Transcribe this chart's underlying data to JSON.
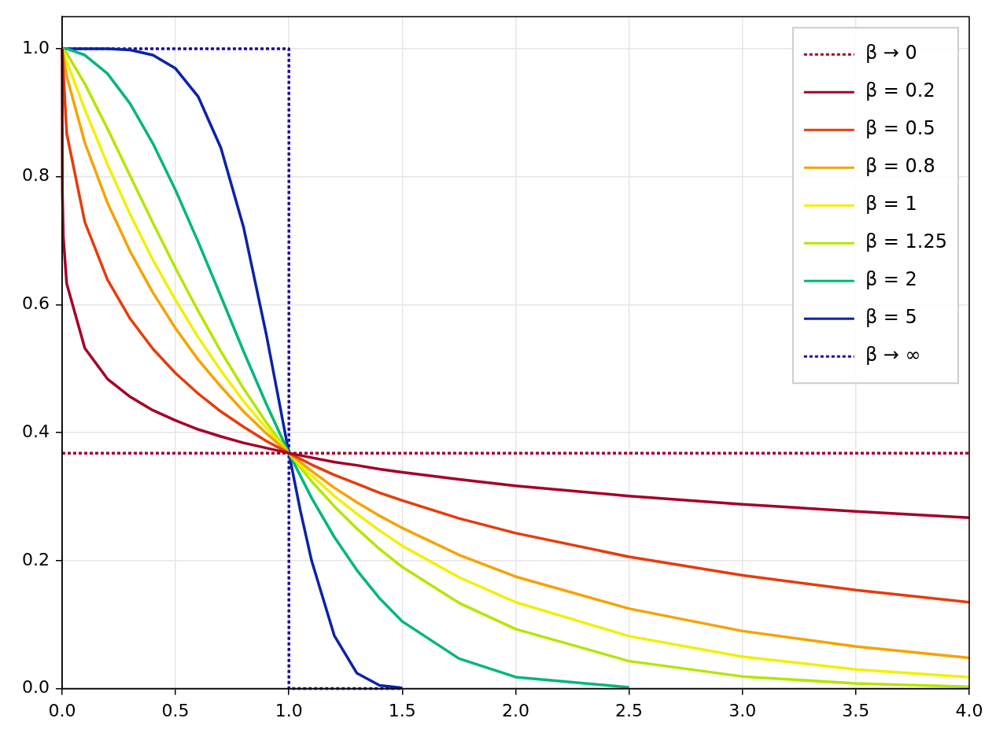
{
  "chart_data": {
    "type": "line",
    "x": [
      0,
      0.02,
      0.1,
      0.2,
      0.3,
      0.4,
      0.5,
      0.6,
      0.7,
      0.8,
      0.9,
      1,
      1.1,
      1.2,
      1.3,
      1.4,
      1.5,
      1.75,
      2,
      2.5,
      3,
      3.5,
      4
    ],
    "series": [
      {
        "name": "β → 0",
        "color": "#a50026",
        "line_style": "dotted",
        "x": [
          0,
          4
        ],
        "values": [
          0.368,
          0.368
        ]
      },
      {
        "name": "β = 0.2",
        "color": "#a50026",
        "x": [
          0,
          0.001,
          0.005,
          0.02,
          0.1,
          0.2,
          0.3,
          0.4,
          0.5,
          0.6,
          0.7,
          0.8,
          0.9,
          1,
          1.1,
          1.2,
          1.3,
          1.4,
          1.5,
          1.75,
          2,
          2.5,
          3,
          3.5,
          4
        ],
        "values": [
          1,
          0.778,
          0.707,
          0.633,
          0.532,
          0.484,
          0.456,
          0.435,
          0.419,
          0.405,
          0.394,
          0.384,
          0.376,
          0.368,
          0.361,
          0.354,
          0.349,
          0.343,
          0.338,
          0.327,
          0.317,
          0.301,
          0.288,
          0.277,
          0.267
        ]
      },
      {
        "name": "β = 0.5",
        "color": "#e63c0c",
        "values": [
          1,
          0.868,
          0.729,
          0.639,
          0.578,
          0.531,
          0.493,
          0.461,
          0.433,
          0.409,
          0.387,
          0.368,
          0.35,
          0.334,
          0.32,
          0.306,
          0.294,
          0.266,
          0.243,
          0.206,
          0.177,
          0.154,
          0.135
        ]
      },
      {
        "name": "β = 0.8",
        "color": "#f5a300",
        "values": [
          1,
          0.957,
          0.853,
          0.759,
          0.683,
          0.619,
          0.563,
          0.514,
          0.472,
          0.433,
          0.399,
          0.368,
          0.34,
          0.314,
          0.291,
          0.27,
          0.251,
          0.209,
          0.175,
          0.125,
          0.09,
          0.066,
          0.048
        ]
      },
      {
        "name": "β = 1",
        "color": "#f2f000",
        "values": [
          1,
          0.98,
          0.905,
          0.819,
          0.741,
          0.67,
          0.607,
          0.549,
          0.497,
          0.449,
          0.407,
          0.368,
          0.333,
          0.301,
          0.273,
          0.247,
          0.223,
          0.174,
          0.135,
          0.082,
          0.05,
          0.03,
          0.018
        ]
      },
      {
        "name": "β = 1.25",
        "color": "#b5e600",
        "values": [
          1,
          0.993,
          0.945,
          0.875,
          0.801,
          0.728,
          0.657,
          0.59,
          0.527,
          0.469,
          0.416,
          0.368,
          0.324,
          0.285,
          0.25,
          0.218,
          0.19,
          0.134,
          0.093,
          0.043,
          0.019,
          0.008,
          0.003
        ]
      },
      {
        "name": "β = 2",
        "color": "#00b77a",
        "values": [
          1,
          1,
          0.99,
          0.961,
          0.914,
          0.852,
          0.779,
          0.698,
          0.613,
          0.527,
          0.445,
          0.368,
          0.298,
          0.237,
          0.185,
          0.141,
          0.105,
          0.047,
          0.018,
          0.002,
          null,
          null,
          null
        ]
      },
      {
        "name": "β = 5",
        "color": "#0b22a8",
        "x": [
          0,
          0.1,
          0.2,
          0.3,
          0.4,
          0.5,
          0.6,
          0.7,
          0.8,
          0.9,
          0.95,
          1,
          1.05,
          1.1,
          1.2,
          1.3,
          1.4,
          1.5
        ],
        "values": [
          1,
          1,
          1,
          0.998,
          0.99,
          0.969,
          0.925,
          0.845,
          0.721,
          0.554,
          0.461,
          0.368,
          0.279,
          0.2,
          0.083,
          0.024,
          0.005,
          0.001
        ]
      },
      {
        "name": "β → ∞",
        "color": "#1c0aa0",
        "line_style": "dotted",
        "x": [
          0,
          1,
          1,
          1.5
        ],
        "values": [
          1,
          1,
          0,
          0
        ]
      }
    ],
    "xlim": [
      0,
      4
    ],
    "xticks": [
      {
        "value": 0,
        "label": "0.0"
      },
      0.5,
      {
        "value": 1,
        "label": "1.0"
      },
      1.5,
      {
        "value": 2,
        "label": "2.0"
      },
      2.5,
      {
        "value": 3,
        "label": "3.0"
      },
      3.5,
      {
        "value": 4,
        "label": "4.0"
      }
    ],
    "ylim": [
      0,
      1.05
    ],
    "yticks": [
      {
        "value": 0,
        "label": "0.0"
      },
      0.2,
      0.4,
      0.6,
      0.8,
      {
        "value": 1,
        "label": "1.0"
      }
    ],
    "grid": true,
    "legend": "top right",
    "marker": "none"
  }
}
